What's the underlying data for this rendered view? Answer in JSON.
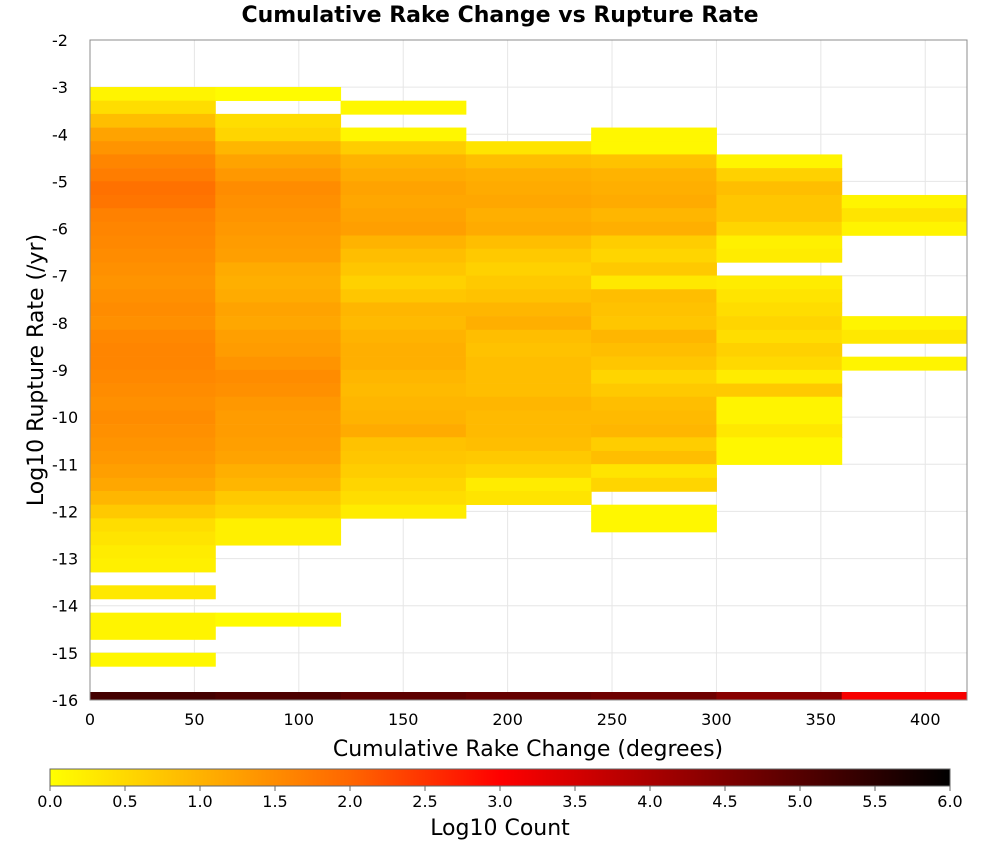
{
  "chart_data": {
    "type": "heatmap",
    "title": "Cumulative Rake Change vs Rupture Rate",
    "xlabel": "Cumulative Rake Change (degrees)",
    "ylabel": "Log10 Rupture Rate (/yr)",
    "xlim": [
      0,
      420
    ],
    "ylim": [
      -16,
      -2
    ],
    "x_ticks": [
      "0",
      "50",
      "100",
      "150",
      "200",
      "250",
      "300",
      "350",
      "400"
    ],
    "y_ticks": [
      "-2",
      "-3",
      "-4",
      "-5",
      "-6",
      "-7",
      "-8",
      "-9",
      "-10",
      "-11",
      "-12",
      "-13",
      "-14",
      "-15",
      "-16"
    ],
    "grid": true,
    "x_bin_width": 60,
    "y_bin_height": 0.2857,
    "colorbar": {
      "label": "Log10 Count",
      "range": [
        0,
        6
      ],
      "ticks": [
        "0.0",
        "0.5",
        "1.0",
        "1.5",
        "2.0",
        "2.5",
        "3.0",
        "3.5",
        "4.0",
        "4.5",
        "5.0",
        "5.5",
        "6.0"
      ],
      "stops": [
        {
          "value": 0,
          "color": "#ffff00"
        },
        {
          "value": 2,
          "color": "#ff6600"
        },
        {
          "value": 3,
          "color": "#ff0000"
        },
        {
          "value": 6,
          "color": "#000000"
        }
      ]
    },
    "cells": [
      {
        "x": 0,
        "log_count_by_y": [
          [
            -3.14,
            0.15
          ],
          [
            -3.43,
            0.45
          ],
          [
            -3.71,
            0.85
          ],
          [
            -4.0,
            1.2
          ],
          [
            -4.29,
            1.4
          ],
          [
            -4.57,
            1.6
          ],
          [
            -4.86,
            1.7
          ],
          [
            -5.14,
            1.85
          ],
          [
            -5.43,
            1.8
          ],
          [
            -5.71,
            1.65
          ],
          [
            -6.0,
            1.6
          ],
          [
            -6.29,
            1.55
          ],
          [
            -6.57,
            1.5
          ],
          [
            -6.86,
            1.45
          ],
          [
            -7.14,
            1.4
          ],
          [
            -7.43,
            1.45
          ],
          [
            -7.71,
            1.5
          ],
          [
            -8.0,
            1.45
          ],
          [
            -8.29,
            1.55
          ],
          [
            -8.57,
            1.6
          ],
          [
            -8.86,
            1.6
          ],
          [
            -9.14,
            1.55
          ],
          [
            -9.43,
            1.5
          ],
          [
            -9.71,
            1.45
          ],
          [
            -10.0,
            1.5
          ],
          [
            -10.29,
            1.45
          ],
          [
            -10.57,
            1.4
          ],
          [
            -10.86,
            1.35
          ],
          [
            -11.14,
            1.25
          ],
          [
            -11.43,
            1.15
          ],
          [
            -11.71,
            0.95
          ],
          [
            -12.0,
            0.7
          ],
          [
            -12.29,
            0.45
          ],
          [
            -12.57,
            0.35
          ],
          [
            -12.86,
            0.25
          ],
          [
            -13.14,
            0.2
          ],
          [
            -13.71,
            0.3
          ],
          [
            -14.29,
            0.15
          ],
          [
            -14.57,
            0.15
          ],
          [
            -15.14,
            0.1
          ]
        ]
      },
      {
        "x": 60,
        "log_count_by_y": [
          [
            -3.14,
            0.05
          ],
          [
            -3.71,
            0.45
          ],
          [
            -4.0,
            0.55
          ],
          [
            -4.29,
            0.95
          ],
          [
            -4.57,
            1.2
          ],
          [
            -4.86,
            1.35
          ],
          [
            -5.14,
            1.5
          ],
          [
            -5.43,
            1.45
          ],
          [
            -5.71,
            1.4
          ],
          [
            -6.0,
            1.35
          ],
          [
            -6.29,
            1.3
          ],
          [
            -6.57,
            1.25
          ],
          [
            -6.86,
            1.1
          ],
          [
            -7.14,
            1.05
          ],
          [
            -7.43,
            1.1
          ],
          [
            -7.71,
            1.2
          ],
          [
            -8.0,
            1.15
          ],
          [
            -8.29,
            1.25
          ],
          [
            -8.57,
            1.3
          ],
          [
            -8.86,
            1.4
          ],
          [
            -9.14,
            1.5
          ],
          [
            -9.43,
            1.45
          ],
          [
            -9.71,
            1.35
          ],
          [
            -10.0,
            1.3
          ],
          [
            -10.29,
            1.3
          ],
          [
            -10.57,
            1.25
          ],
          [
            -10.86,
            1.2
          ],
          [
            -11.14,
            1.05
          ],
          [
            -11.43,
            0.95
          ],
          [
            -11.71,
            0.7
          ],
          [
            -12.0,
            0.55
          ],
          [
            -12.29,
            0.2
          ],
          [
            -12.57,
            0.2
          ],
          [
            -14.29,
            0.05
          ]
        ]
      },
      {
        "x": 120,
        "log_count_by_y": [
          [
            -3.43,
            0.1
          ],
          [
            -4.0,
            0.1
          ],
          [
            -4.29,
            0.65
          ],
          [
            -4.57,
            1.0
          ],
          [
            -4.86,
            1.1
          ],
          [
            -5.14,
            1.2
          ],
          [
            -5.43,
            1.15
          ],
          [
            -5.71,
            1.2
          ],
          [
            -6.0,
            1.25
          ],
          [
            -6.29,
            1.0
          ],
          [
            -6.57,
            0.85
          ],
          [
            -6.86,
            0.75
          ],
          [
            -7.14,
            0.6
          ],
          [
            -7.43,
            0.75
          ],
          [
            -7.71,
            0.95
          ],
          [
            -8.0,
            0.9
          ],
          [
            -8.29,
            1.0
          ],
          [
            -8.57,
            1.05
          ],
          [
            -8.86,
            1.05
          ],
          [
            -9.14,
            0.95
          ],
          [
            -9.43,
            0.9
          ],
          [
            -9.71,
            0.95
          ],
          [
            -10.0,
            1.0
          ],
          [
            -10.29,
            1.1
          ],
          [
            -10.57,
            0.8
          ],
          [
            -10.86,
            0.75
          ],
          [
            -11.14,
            0.65
          ],
          [
            -11.43,
            0.55
          ],
          [
            -11.71,
            0.45
          ],
          [
            -12.0,
            0.25
          ]
        ]
      },
      {
        "x": 180,
        "log_count_by_y": [
          [
            -4.29,
            0.35
          ],
          [
            -4.57,
            0.85
          ],
          [
            -4.86,
            1.05
          ],
          [
            -5.14,
            1.1
          ],
          [
            -5.43,
            1.15
          ],
          [
            -5.71,
            1.05
          ],
          [
            -6.0,
            1.1
          ],
          [
            -6.29,
            0.85
          ],
          [
            -6.57,
            0.7
          ],
          [
            -6.86,
            0.6
          ],
          [
            -7.14,
            0.7
          ],
          [
            -7.43,
            0.8
          ],
          [
            -7.71,
            0.95
          ],
          [
            -8.0,
            1.05
          ],
          [
            -8.29,
            0.85
          ],
          [
            -8.57,
            0.8
          ],
          [
            -8.86,
            0.85
          ],
          [
            -9.14,
            0.85
          ],
          [
            -9.43,
            0.85
          ],
          [
            -9.71,
            0.95
          ],
          [
            -10.0,
            0.9
          ],
          [
            -10.29,
            0.9
          ],
          [
            -10.57,
            0.85
          ],
          [
            -10.86,
            0.7
          ],
          [
            -11.14,
            0.55
          ],
          [
            -11.43,
            0.25
          ],
          [
            -11.71,
            0.35
          ]
        ]
      },
      {
        "x": 240,
        "log_count_by_y": [
          [
            -4.0,
            0.1
          ],
          [
            -4.29,
            0.1
          ],
          [
            -4.57,
            0.8
          ],
          [
            -4.86,
            1.0
          ],
          [
            -5.14,
            1.05
          ],
          [
            -5.43,
            1.1
          ],
          [
            -5.71,
            0.95
          ],
          [
            -6.0,
            1.05
          ],
          [
            -6.29,
            0.65
          ],
          [
            -6.57,
            0.55
          ],
          [
            -6.86,
            0.7
          ],
          [
            -7.14,
            0.3
          ],
          [
            -7.43,
            0.85
          ],
          [
            -7.71,
            0.8
          ],
          [
            -8.0,
            0.75
          ],
          [
            -8.29,
            0.95
          ],
          [
            -8.57,
            0.85
          ],
          [
            -8.86,
            0.75
          ],
          [
            -9.14,
            0.55
          ],
          [
            -9.43,
            0.7
          ],
          [
            -9.71,
            0.85
          ],
          [
            -10.0,
            0.9
          ],
          [
            -10.29,
            0.95
          ],
          [
            -10.57,
            0.65
          ],
          [
            -10.86,
            0.85
          ],
          [
            -11.14,
            0.35
          ],
          [
            -11.43,
            0.55
          ],
          [
            -12.0,
            0.1
          ],
          [
            -12.29,
            0.1
          ]
        ]
      },
      {
        "x": 300,
        "log_count_by_y": [
          [
            -4.57,
            0.15
          ],
          [
            -4.86,
            0.6
          ],
          [
            -5.14,
            0.85
          ],
          [
            -5.43,
            0.75
          ],
          [
            -5.71,
            0.75
          ],
          [
            -6.0,
            0.55
          ],
          [
            -6.29,
            0.2
          ],
          [
            -6.57,
            0.25
          ],
          [
            -7.14,
            0.25
          ],
          [
            -7.43,
            0.35
          ],
          [
            -7.71,
            0.45
          ],
          [
            -8.0,
            0.55
          ],
          [
            -8.29,
            0.45
          ],
          [
            -8.57,
            0.6
          ],
          [
            -8.86,
            0.5
          ],
          [
            -9.14,
            0.25
          ],
          [
            -9.43,
            0.7
          ],
          [
            -9.71,
            0.15
          ],
          [
            -10.0,
            0.15
          ],
          [
            -10.29,
            0.3
          ],
          [
            -10.57,
            0.1
          ],
          [
            -10.86,
            0.1
          ]
        ]
      },
      {
        "x": 360,
        "log_count_by_y": [
          [
            -5.43,
            0.15
          ],
          [
            -5.71,
            0.35
          ],
          [
            -6.0,
            0.15
          ],
          [
            -8.0,
            0.15
          ],
          [
            -8.29,
            0.3
          ],
          [
            -8.86,
            0.15
          ]
        ]
      }
    ],
    "bottom_row": {
      "y": -16,
      "log_count_by_x": [
        [
          0,
          5.2
        ],
        [
          60,
          5.1
        ],
        [
          120,
          4.9
        ],
        [
          180,
          4.8
        ],
        [
          240,
          4.7
        ],
        [
          300,
          4.4
        ],
        [
          360,
          3.1
        ]
      ]
    }
  }
}
